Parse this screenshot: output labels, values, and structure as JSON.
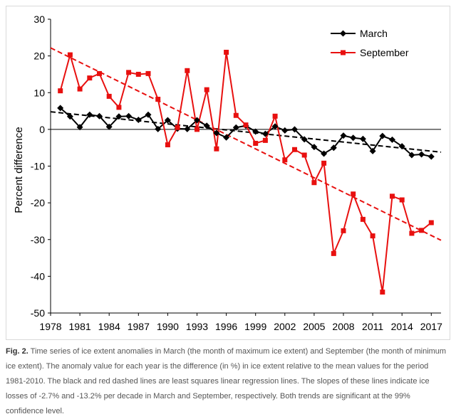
{
  "chart_data": {
    "type": "line",
    "xlabel": "",
    "ylabel": "Percent difference",
    "xlim": [
      1978,
      2018
    ],
    "ylim": [
      -50,
      30
    ],
    "x_ticks": [
      1978,
      1981,
      1984,
      1987,
      1990,
      1993,
      1996,
      1999,
      2002,
      2005,
      2008,
      2011,
      2014,
      2017
    ],
    "y_ticks": [
      30,
      20,
      10,
      0,
      -10,
      -20,
      -30,
      -40,
      -50
    ],
    "grid": false,
    "zero_line": true,
    "legend_position": "top-right",
    "x": [
      1979,
      1980,
      1981,
      1982,
      1983,
      1984,
      1985,
      1986,
      1987,
      1988,
      1989,
      1990,
      1991,
      1992,
      1993,
      1994,
      1995,
      1996,
      1997,
      1998,
      1999,
      2000,
      2001,
      2002,
      2003,
      2004,
      2005,
      2006,
      2007,
      2008,
      2009,
      2010,
      2011,
      2012,
      2013,
      2014,
      2015,
      2016,
      2017
    ],
    "series": [
      {
        "name": "March",
        "color": "#000000",
        "marker": "diamond",
        "values": [
          5.8,
          3.5,
          0.6,
          4.0,
          3.6,
          0.7,
          3.5,
          3.6,
          2.6,
          4.0,
          0.1,
          2.5,
          0.2,
          0.1,
          2.5,
          1.0,
          -1.0,
          -2.2,
          0.5,
          1.0,
          -0.6,
          -1.2,
          0.8,
          -0.3,
          0.0,
          -2.7,
          -4.8,
          -6.6,
          -5.0,
          -1.7,
          -2.3,
          -2.6,
          -5.9,
          -1.8,
          -2.8,
          -4.6,
          -7.0,
          -6.8,
          -7.4
        ],
        "trend": {
          "style": "dashed",
          "start": [
            1978,
            4.8
          ],
          "end": [
            2018,
            -6.2
          ]
        }
      },
      {
        "name": "September",
        "color": "#e8100f",
        "marker": "square",
        "values": [
          10.5,
          20.3,
          11.0,
          14.0,
          15.2,
          9.0,
          6.0,
          15.5,
          15.0,
          15.2,
          8.2,
          -4.2,
          0.5,
          16.0,
          0.0,
          10.8,
          -5.3,
          21.0,
          3.8,
          1.2,
          -3.8,
          -3.0,
          3.6,
          -8.3,
          -5.5,
          -7.0,
          -14.5,
          -9.2,
          -33.8,
          -27.6,
          -17.6,
          -24.5,
          -29.0,
          -44.3,
          -18.2,
          -19.2,
          -28.3,
          -27.5,
          -25.4
        ],
        "trend": {
          "style": "dashed",
          "start": [
            1978,
            22.2
          ],
          "end": [
            2018,
            -30.2
          ]
        }
      }
    ]
  },
  "caption": {
    "label": "Fig. 2.",
    "text": " Time series of ice extent anomalies in March (the month of maximum ice extent) and September (the month of minimum ice extent). The anomaly value for each year is the difference (in %) in ice extent relative to the mean values for the period 1981-2010. The black and red dashed lines are least squares linear regression lines. The slopes of these lines indicate ice losses of -2.7% and -13.2% per decade in March and September, respectively. Both trends are significant at the 99% confidence level."
  }
}
